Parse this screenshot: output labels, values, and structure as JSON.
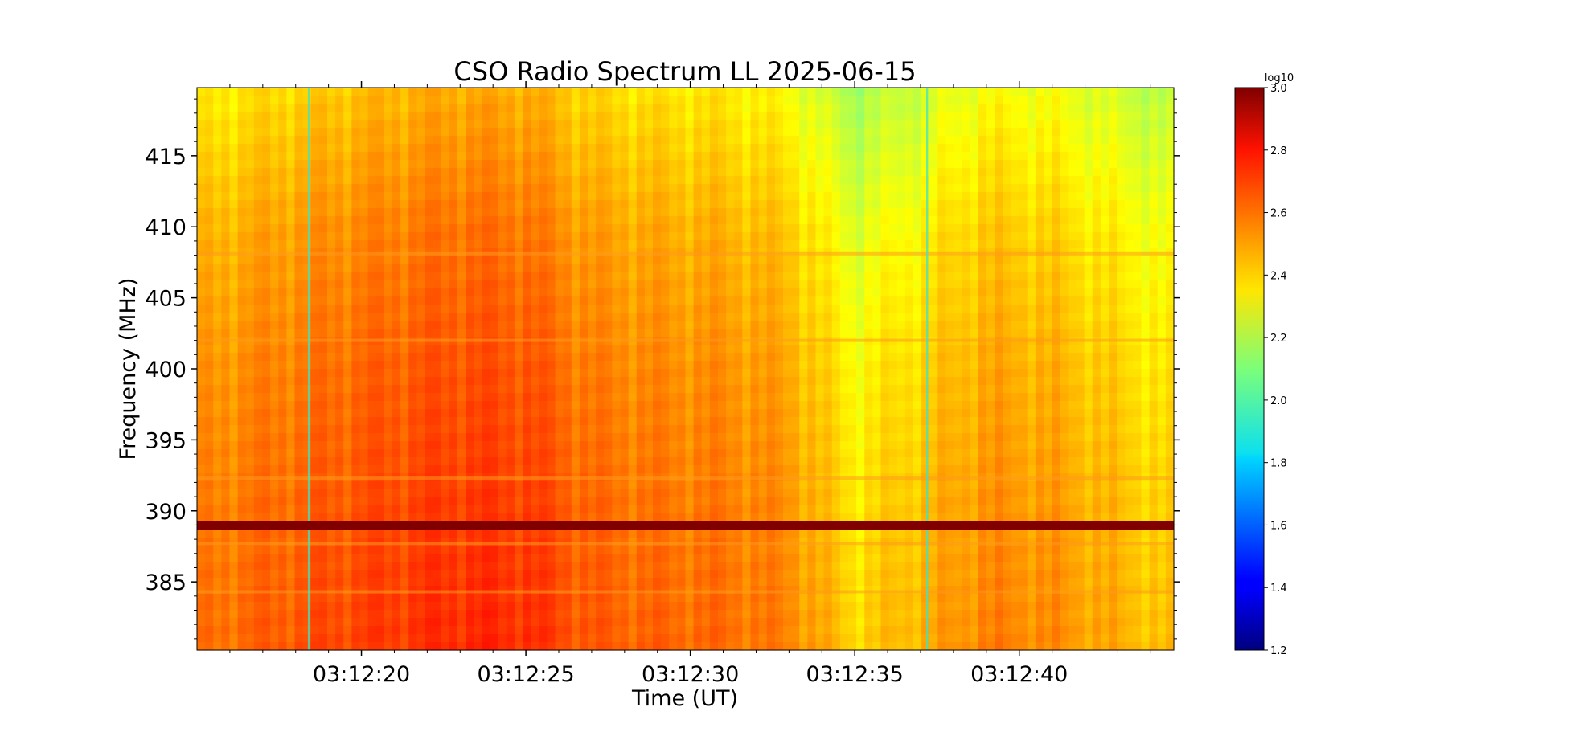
{
  "chart_data": {
    "type": "heatmap",
    "title": "CSO Radio Spectrum LL 2025-06-15",
    "xlabel": "Time (UT)",
    "ylabel": "Frequency (MHz)",
    "x_range": [
      "03:12:15.0",
      "03:12:44.7"
    ],
    "x_ticks": [
      "03:12:20",
      "03:12:25",
      "03:12:30",
      "03:12:35",
      "03:12:40"
    ],
    "ylim": [
      380.2,
      419.8
    ],
    "y_ticks": [
      385,
      390,
      395,
      400,
      405,
      410,
      415
    ],
    "colorbar": {
      "label": "log10",
      "range": [
        1.2,
        3.0
      ],
      "ticks": [
        "1.2",
        "1.4",
        "1.6",
        "1.8",
        "2.0",
        "2.2",
        "2.4",
        "2.6",
        "2.8",
        "3.0"
      ],
      "colormap": "jet"
    },
    "levels": {
      "time_s": [
        15,
        17,
        19,
        21,
        23,
        25,
        27,
        29,
        31,
        33,
        35,
        37,
        39,
        41,
        43,
        44.7
      ],
      "mean_log10": [
        2.52,
        2.56,
        2.6,
        2.63,
        2.66,
        2.65,
        2.57,
        2.55,
        2.54,
        2.5,
        2.35,
        2.42,
        2.5,
        2.48,
        2.42,
        2.37
      ],
      "frequency_offset": [
        {
          "frequency_mhz": 380.2,
          "offset": 0.05
        },
        {
          "frequency_mhz": 390,
          "offset": 0.02
        },
        {
          "frequency_mhz": 400,
          "offset": -0.02
        },
        {
          "frequency_mhz": 410,
          "offset": -0.08
        },
        {
          "frequency_mhz": 419.8,
          "offset": -0.18
        }
      ]
    },
    "features": {
      "interference_band": {
        "frequency_mhz": 389.0,
        "log10": 3.0
      },
      "narrow_lines_mhz": [
        408.1,
        402.0,
        392.3,
        387.7,
        384.3
      ],
      "vertical_artifacts_s": [
        18.4,
        37.2
      ]
    }
  }
}
